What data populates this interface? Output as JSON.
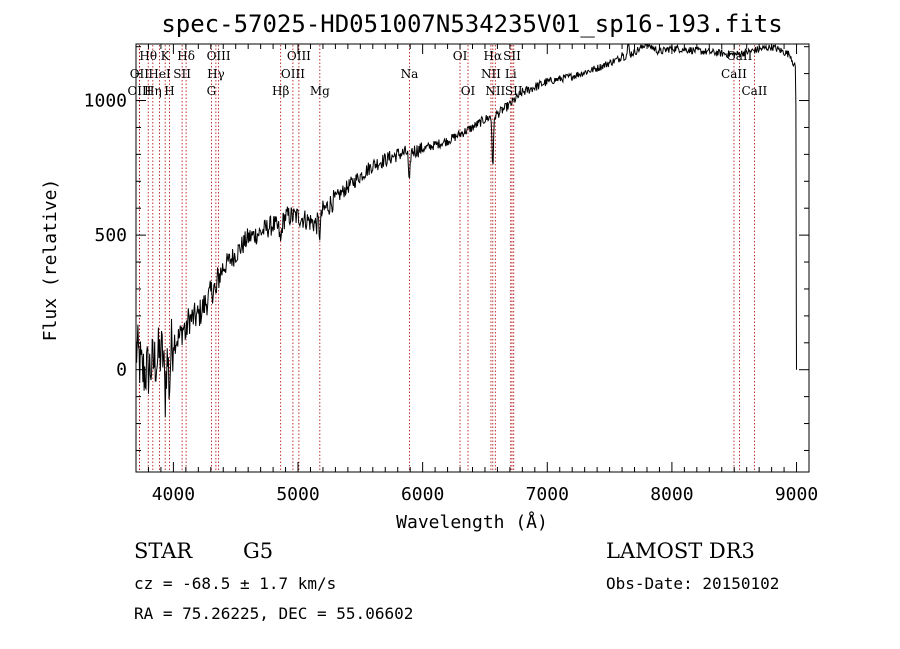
{
  "chart_data": {
    "type": "line",
    "title": "spec-57025-HD051007N534235V01_sp16-193.fits",
    "xlabel": "Wavelength (Å)",
    "ylabel": "Flux (relative)",
    "xlim": [
      3700,
      9100
    ],
    "ylim": [
      -380,
      1210
    ],
    "xticks": [
      4000,
      5000,
      6000,
      7000,
      8000,
      9000
    ],
    "yticks": [
      0,
      500,
      1000
    ],
    "anchors": [
      [
        3700,
        80
      ],
      [
        3750,
        -10
      ],
      [
        3800,
        0
      ],
      [
        3850,
        30
      ],
      [
        3900,
        60
      ],
      [
        3950,
        40
      ],
      [
        4000,
        110
      ],
      [
        4050,
        120
      ],
      [
        4100,
        180
      ],
      [
        4150,
        190
      ],
      [
        4200,
        200
      ],
      [
        4250,
        240
      ],
      [
        4300,
        280
      ],
      [
        4330,
        320
      ],
      [
        4360,
        340
      ],
      [
        4400,
        380
      ],
      [
        4500,
        430
      ],
      [
        4600,
        490
      ],
      [
        4700,
        510
      ],
      [
        4800,
        540
      ],
      [
        4850,
        520
      ],
      [
        4900,
        570
      ],
      [
        5000,
        570
      ],
      [
        5100,
        550
      ],
      [
        5150,
        540
      ],
      [
        5200,
        590
      ],
      [
        5400,
        680
      ],
      [
        5600,
        760
      ],
      [
        5800,
        800
      ],
      [
        6000,
        820
      ],
      [
        6200,
        850
      ],
      [
        6400,
        900
      ],
      [
        6500,
        930
      ],
      [
        6600,
        950
      ],
      [
        6700,
        985
      ],
      [
        6800,
        1030
      ],
      [
        7000,
        1070
      ],
      [
        7200,
        1090
      ],
      [
        7400,
        1120
      ],
      [
        7600,
        1160
      ],
      [
        7700,
        1180
      ],
      [
        7800,
        1210
      ],
      [
        7900,
        1180
      ],
      [
        8000,
        1195
      ],
      [
        8200,
        1185
      ],
      [
        8400,
        1175
      ],
      [
        8500,
        1170
      ],
      [
        8600,
        1180
      ],
      [
        8700,
        1190
      ],
      [
        8800,
        1200
      ],
      [
        8950,
        1170
      ],
      [
        8990,
        1120
      ]
    ],
    "dips": [
      [
        3933,
        -140
      ],
      [
        3968,
        -130
      ],
      [
        4101,
        -60
      ],
      [
        4340,
        -60
      ],
      [
        4861,
        -60
      ],
      [
        5175,
        -60
      ],
      [
        5893,
        -130
      ],
      [
        6563,
        -180
      ],
      [
        7600,
        20
      ]
    ],
    "spikes": [
      [
        7650,
        60
      ],
      [
        7790,
        30
      ]
    ],
    "end_drop": [
      [
        8995,
        980
      ],
      [
        8998,
        230
      ],
      [
        9000,
        0
      ]
    ],
    "lines": [
      {
        "label": "Hθ",
        "wl": 3798,
        "row": 0
      },
      {
        "label": "OII",
        "wl": 3727,
        "row": 1
      },
      {
        "label": "OIII",
        "wl": 3728,
        "row": 2
      },
      {
        "label": "Hη",
        "wl": 3835,
        "row": 2
      },
      {
        "label": "HeI",
        "wl": 3889,
        "row": 1
      },
      {
        "label": "K",
        "wl": 3934,
        "row": 0
      },
      {
        "label": "H",
        "wl": 3969,
        "row": 2
      },
      {
        "label": "SII",
        "wl": 4070,
        "row": 1
      },
      {
        "label": "Hδ",
        "wl": 4102,
        "row": 0
      },
      {
        "label": "G",
        "wl": 4305,
        "row": 2
      },
      {
        "label": "Hγ",
        "wl": 4341,
        "row": 1
      },
      {
        "label": "OIII",
        "wl": 4363,
        "row": 0
      },
      {
        "label": "Hβ",
        "wl": 4861,
        "row": 2
      },
      {
        "label": "OIII",
        "wl": 4959,
        "row": 1
      },
      {
        "label": "OIII",
        "wl": 5007,
        "row": 0
      },
      {
        "label": "Mg",
        "wl": 5175,
        "row": 2
      },
      {
        "label": "Na",
        "wl": 5894,
        "row": 1
      },
      {
        "label": "OI",
        "wl": 6300,
        "row": 0
      },
      {
        "label": "OI",
        "wl": 6364,
        "row": 2
      },
      {
        "label": "NII",
        "wl": 6548,
        "row": 1
      },
      {
        "label": "NII",
        "wl": 6583,
        "row": 2
      },
      {
        "label": "Hα",
        "wl": 6563,
        "row": 0
      },
      {
        "label": "SII",
        "wl": 6717,
        "row": 0
      },
      {
        "label": "SII",
        "wl": 6731,
        "row": 2
      },
      {
        "label": "Li",
        "wl": 6707,
        "row": 1
      },
      {
        "label": "CaII",
        "wl": 8498,
        "row": 1
      },
      {
        "label": "CaII",
        "wl": 8542,
        "row": 0
      },
      {
        "label": "CaII",
        "wl": 8662,
        "row": 2
      }
    ]
  },
  "info": {
    "object_class": "STAR",
    "subclass": "G5",
    "survey": "LAMOST DR3",
    "cz": "cz = -68.5 ± 1.7 km/s",
    "obs_date": "Obs-Date: 20150102",
    "coords": "RA =  75.26225, DEC =  55.06602"
  }
}
